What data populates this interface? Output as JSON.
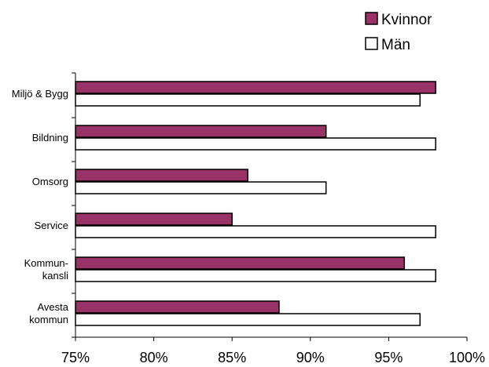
{
  "chart_data": {
    "type": "bar",
    "orientation": "horizontal",
    "categories": [
      [
        "Miljö & Bygg"
      ],
      [
        "Bildning"
      ],
      [
        "Omsorg"
      ],
      [
        "Service"
      ],
      [
        "Kommun-",
        "kansli"
      ],
      [
        "Avesta",
        "kommun"
      ]
    ],
    "series": [
      {
        "name": "Kvinnor",
        "color": "#993366",
        "values": [
          98,
          91,
          86,
          85,
          96,
          88
        ]
      },
      {
        "name": "Män",
        "color": "#ffffff",
        "values": [
          97,
          98,
          91,
          98,
          98,
          97
        ]
      }
    ],
    "xlim": [
      75,
      100
    ],
    "x_ticks": [
      75,
      80,
      85,
      90,
      95,
      100
    ],
    "x_tick_labels": [
      "75%",
      "80%",
      "85%",
      "90%",
      "95%",
      "100%"
    ],
    "title": "",
    "xlabel": "",
    "ylabel": "",
    "grid": false,
    "legend_position": "top-right"
  }
}
